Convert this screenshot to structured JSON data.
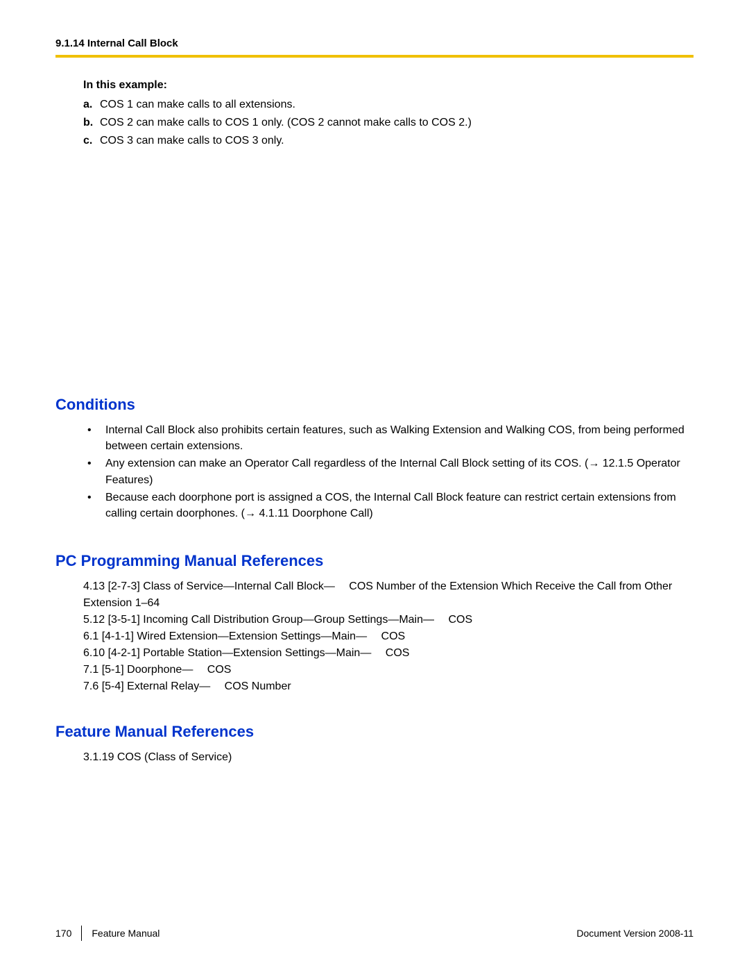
{
  "header": {
    "section_number": "9.1.14 Internal Call Block"
  },
  "example": {
    "title": "In this example:",
    "items": [
      {
        "marker": "a.",
        "text": "COS 1 can make calls to all extensions."
      },
      {
        "marker": "b.",
        "text": "COS 2 can make calls to COS 1 only. (COS 2 cannot make calls to COS 2.)"
      },
      {
        "marker": "c.",
        "text": "COS 3 can make calls to COS 3 only."
      }
    ]
  },
  "conditions": {
    "heading": "Conditions",
    "bullets": [
      "Internal Call Block also prohibits certain features, such as Walking Extension and Walking COS, from being performed between certain extensions.",
      "Any extension can make an Operator Call regardless of the Internal Call Block setting of its COS. (→ 12.1.5  Operator Features)",
      "Because each doorphone port is assigned a COS, the Internal Call Block feature can restrict certain extensions from calling certain doorphones. (→ 4.1.11  Doorphone Call)"
    ]
  },
  "pc_refs": {
    "heading": "PC Programming Manual References",
    "lines": [
      "4.13  [2-7-3] Class of Service—Internal Call Block—  COS Number of the Extension Which Receive the Call from Other Extension 1–64",
      "5.12  [3-5-1] Incoming Call Distribution Group—Group Settings—Main—  COS",
      "6.1  [4-1-1] Wired Extension—Extension Settings—Main—  COS",
      "6.10  [4-2-1] Portable Station—Extension Settings—Main—  COS",
      "7.1  [5-1] Doorphone—  COS",
      "7.6  [5-4] External Relay—  COS Number"
    ]
  },
  "feature_refs": {
    "heading": "Feature Manual References",
    "lines": [
      "3.1.19  COS (Class of Service)"
    ]
  },
  "footer": {
    "page": "170",
    "title": "Feature Manual",
    "version": "Document Version  2008-11"
  },
  "colors": {
    "heading_blue": "#0033cc",
    "rule_yellow": "#f0c000",
    "text": "#000000",
    "background": "#ffffff"
  },
  "typography": {
    "body_fontsize": 16,
    "heading_fontsize": 22,
    "header_fontsize": 15,
    "footer_fontsize": 14,
    "font_family": "Arial"
  }
}
